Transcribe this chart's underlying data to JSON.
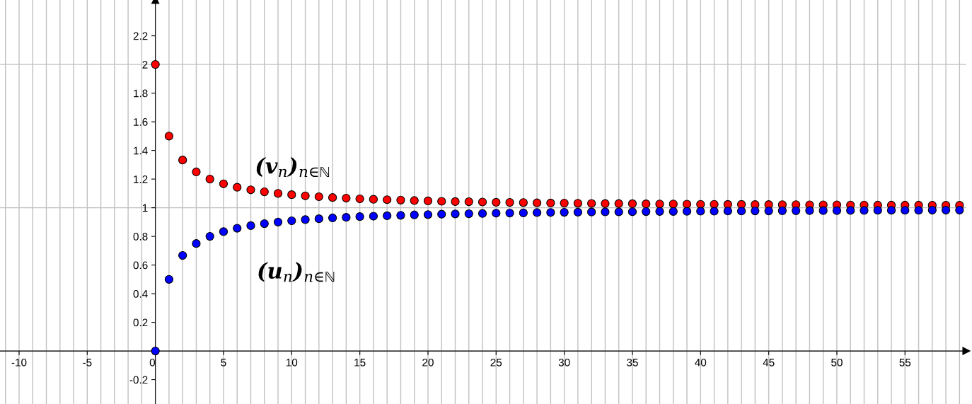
{
  "chart_data": {
    "type": "scatter",
    "x": [
      0,
      1,
      2,
      3,
      4,
      5,
      6,
      7,
      8,
      9,
      10,
      11,
      12,
      13,
      14,
      15,
      16,
      17,
      18,
      19,
      20,
      21,
      22,
      23,
      24,
      25,
      26,
      27,
      28,
      29,
      30,
      31,
      32,
      33,
      34,
      35,
      36,
      37,
      38,
      39,
      40,
      41,
      42,
      43,
      44,
      45,
      46,
      47,
      48,
      49,
      50,
      51,
      52,
      53,
      54,
      55,
      56,
      57,
      58,
      59
    ],
    "series": [
      {
        "name": "(v$_{n}$)$_{n∈ℕ}$",
        "color": "#ff0000",
        "values": [
          2,
          1.5,
          1.333,
          1.25,
          1.2,
          1.167,
          1.143,
          1.125,
          1.111,
          1.1,
          1.091,
          1.083,
          1.077,
          1.071,
          1.067,
          1.062,
          1.059,
          1.056,
          1.053,
          1.05,
          1.048,
          1.045,
          1.043,
          1.042,
          1.04,
          1.038,
          1.037,
          1.036,
          1.034,
          1.033,
          1.032,
          1.031,
          1.03,
          1.029,
          1.029,
          1.028,
          1.027,
          1.026,
          1.026,
          1.025,
          1.024,
          1.024,
          1.023,
          1.023,
          1.022,
          1.022,
          1.021,
          1.021,
          1.02,
          1.02,
          1.02,
          1.019,
          1.019,
          1.018,
          1.018,
          1.018,
          1.018,
          1.017,
          1.017,
          1.017
        ]
      },
      {
        "name": "(u$_{n}$)$_{n∈ℕ}$",
        "color": "#0000ff",
        "values": [
          0,
          0.5,
          0.667,
          0.75,
          0.8,
          0.833,
          0.857,
          0.875,
          0.889,
          0.9,
          0.909,
          0.917,
          0.923,
          0.929,
          0.933,
          0.938,
          0.941,
          0.944,
          0.947,
          0.95,
          0.952,
          0.955,
          0.957,
          0.958,
          0.96,
          0.962,
          0.963,
          0.964,
          0.966,
          0.967,
          0.968,
          0.969,
          0.97,
          0.971,
          0.971,
          0.972,
          0.973,
          0.974,
          0.974,
          0.975,
          0.976,
          0.976,
          0.977,
          0.977,
          0.978,
          0.978,
          0.979,
          0.979,
          0.98,
          0.98,
          0.98,
          0.981,
          0.981,
          0.982,
          0.982,
          0.982,
          0.982,
          0.983,
          0.983,
          0.983
        ]
      }
    ],
    "xlim": [
      -11.4,
      59.5
    ],
    "ylim": [
      -0.37,
      2.45
    ],
    "xticks": [
      -10,
      -5,
      0,
      5,
      10,
      15,
      20,
      25,
      30,
      35,
      40,
      45,
      50,
      55
    ],
    "yticks": [
      -0.2,
      0.2,
      0.4,
      0.6,
      0.8,
      1,
      1.2,
      1.4,
      1.6,
      1.8,
      2,
      2.2
    ],
    "grid": true,
    "marker": "circle",
    "legend": false
  }
}
